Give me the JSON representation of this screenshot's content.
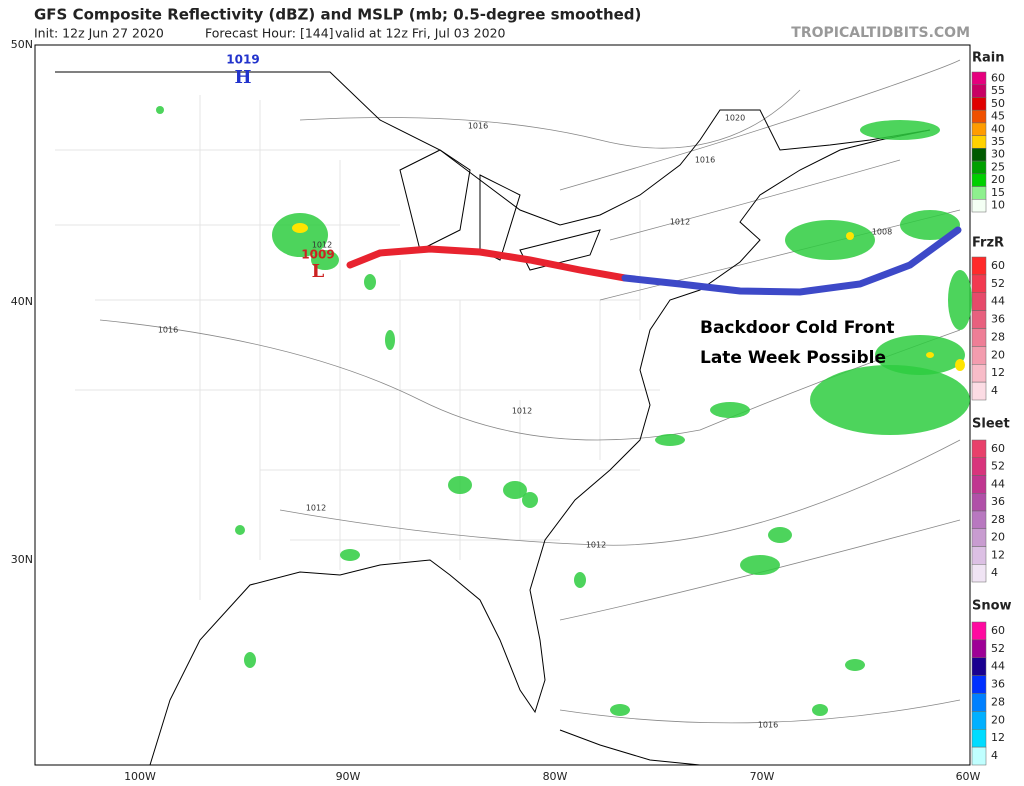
{
  "header": {
    "title": "GFS Composite Reflectivity (dBZ) and MSLP (mb; 0.5-degree smoothed)",
    "init": "Init: 12z Jun 27 2020",
    "forecast_hour": "Forecast Hour: [144]",
    "valid": "valid at 12z Fri, Jul 03 2020",
    "brand": "TROPICALTIDBITS.COM"
  },
  "map": {
    "lat_labels": [
      "50N",
      "40N",
      "30N"
    ],
    "lon_labels": [
      "100W",
      "90W",
      "80W",
      "70W",
      "60W"
    ],
    "isobar_labels": [
      "1016",
      "1016",
      "1020",
      "1012",
      "1008",
      "1016",
      "1012",
      "1012",
      "1012",
      "1016",
      "1012"
    ],
    "pressure_centers": [
      {
        "symbol": "H",
        "value": "1019"
      },
      {
        "symbol": "L",
        "value": "1009"
      }
    ],
    "annotation": [
      "Backdoor Cold Front",
      "Late Week Possible"
    ]
  },
  "legend": [
    {
      "title": "Rain",
      "values": [
        60,
        55,
        50,
        45,
        40,
        35,
        30,
        25,
        20,
        15,
        10
      ]
    },
    {
      "title": "FrzR",
      "values": [
        60,
        52,
        44,
        36,
        28,
        20,
        12,
        4
      ]
    },
    {
      "title": "Sleet",
      "values": [
        60,
        52,
        44,
        36,
        28,
        20,
        12,
        4
      ]
    },
    {
      "title": "Snow",
      "values": [
        60,
        52,
        44,
        36,
        28,
        20,
        12,
        4
      ]
    }
  ]
}
